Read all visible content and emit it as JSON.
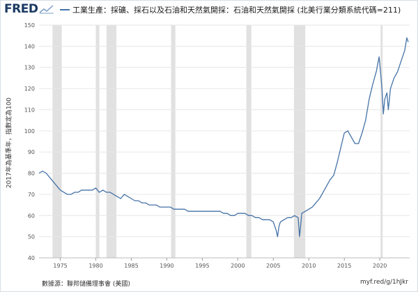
{
  "header": {
    "logo_text": "FRED",
    "logo_icon": "line-chart-icon",
    "legend_title": "工業生產：採礦、採石以及石油和天然氣開採：石油和天然氣開採 (北美行業分類系統代碼=211)"
  },
  "footer": {
    "source": "數據源：聯邦儲備理事會 (美國)",
    "url": "myf.red/g/1hJkr"
  },
  "colors": {
    "series": "#4572a7",
    "recession": "#e1e1e1",
    "grid": "#e6e6e6",
    "brand": "#1b3a63"
  },
  "chart_data": {
    "type": "line",
    "title": "工業生產：採礦、採石以及石油和天然氣開採：石油和天然氣開採 (北美行業分類系統代碼=211)",
    "xlabel": "",
    "ylabel": "2017年為基準年，指數定為100",
    "xlim": [
      1972.0,
      2024.2
    ],
    "ylim": [
      40,
      150
    ],
    "x_ticks": [
      1975,
      1980,
      1985,
      1990,
      1995,
      2000,
      2005,
      2010,
      2015,
      2020
    ],
    "y_ticks": [
      40,
      50,
      60,
      70,
      80,
      90,
      100,
      110,
      120,
      130,
      140,
      150
    ],
    "grid": true,
    "recessions": [
      [
        1973.9,
        1975.2
      ],
      [
        1980.0,
        1980.5
      ],
      [
        1981.5,
        1982.9
      ],
      [
        1990.6,
        1991.2
      ],
      [
        2001.2,
        2001.9
      ],
      [
        2007.9,
        2009.5
      ],
      [
        2020.1,
        2020.4
      ]
    ],
    "series": [
      {
        "name": "",
        "x": [
          1972.0,
          1972.5,
          1973.0,
          1973.5,
          1974.0,
          1974.5,
          1975.0,
          1975.5,
          1976.0,
          1976.5,
          1977.0,
          1977.5,
          1978.0,
          1978.5,
          1979.0,
          1979.5,
          1980.0,
          1980.5,
          1981.0,
          1981.5,
          1982.0,
          1982.5,
          1983.0,
          1983.5,
          1984.0,
          1984.5,
          1985.0,
          1985.5,
          1986.0,
          1986.5,
          1987.0,
          1987.5,
          1988.0,
          1988.5,
          1989.0,
          1989.5,
          1990.0,
          1990.5,
          1991.0,
          1991.5,
          1992.0,
          1992.5,
          1993.0,
          1993.5,
          1994.0,
          1994.5,
          1995.0,
          1995.5,
          1996.0,
          1996.5,
          1997.0,
          1997.5,
          1998.0,
          1998.5,
          1999.0,
          1999.5,
          2000.0,
          2000.5,
          2001.0,
          2001.5,
          2002.0,
          2002.5,
          2003.0,
          2003.5,
          2004.0,
          2004.5,
          2005.0,
          2005.4,
          2005.6,
          2005.8,
          2006.0,
          2006.5,
          2007.0,
          2007.5,
          2008.0,
          2008.5,
          2008.7,
          2008.9,
          2009.0,
          2009.5,
          2010.0,
          2010.5,
          2011.0,
          2011.5,
          2012.0,
          2012.5,
          2013.0,
          2013.5,
          2014.0,
          2014.5,
          2015.0,
          2015.5,
          2016.0,
          2016.5,
          2017.0,
          2017.5,
          2018.0,
          2018.5,
          2019.0,
          2019.5,
          2019.9,
          2020.3,
          2020.5,
          2020.7,
          2021.0,
          2021.2,
          2021.5,
          2022.0,
          2022.5,
          2023.0,
          2023.5,
          2023.8,
          2024.0
        ],
        "values": [
          80,
          81,
          80,
          78,
          76,
          74,
          72,
          71,
          70,
          70,
          71,
          71,
          72,
          72,
          72,
          72,
          73,
          71,
          72,
          71,
          71,
          70,
          69,
          68,
          70,
          69,
          68,
          67,
          67,
          66,
          66,
          65,
          65,
          65,
          64,
          64,
          64,
          64,
          63,
          63,
          63,
          63,
          62,
          62,
          62,
          62,
          62,
          62,
          62,
          62,
          62,
          62,
          61,
          61,
          60,
          60,
          61,
          61,
          61,
          60,
          60,
          59,
          59,
          58,
          58,
          58,
          57,
          53,
          50,
          55,
          57,
          58,
          59,
          59,
          60,
          59,
          50,
          57,
          61,
          62,
          63,
          64,
          66,
          68,
          71,
          74,
          77,
          79,
          85,
          92,
          99,
          100,
          97,
          94,
          94,
          99,
          105,
          115,
          122,
          128,
          135,
          120,
          108,
          115,
          118,
          110,
          120,
          125,
          128,
          133,
          138,
          144,
          142
        ]
      }
    ],
    "source": "數據源：聯邦儲備理事會 (美國)"
  }
}
